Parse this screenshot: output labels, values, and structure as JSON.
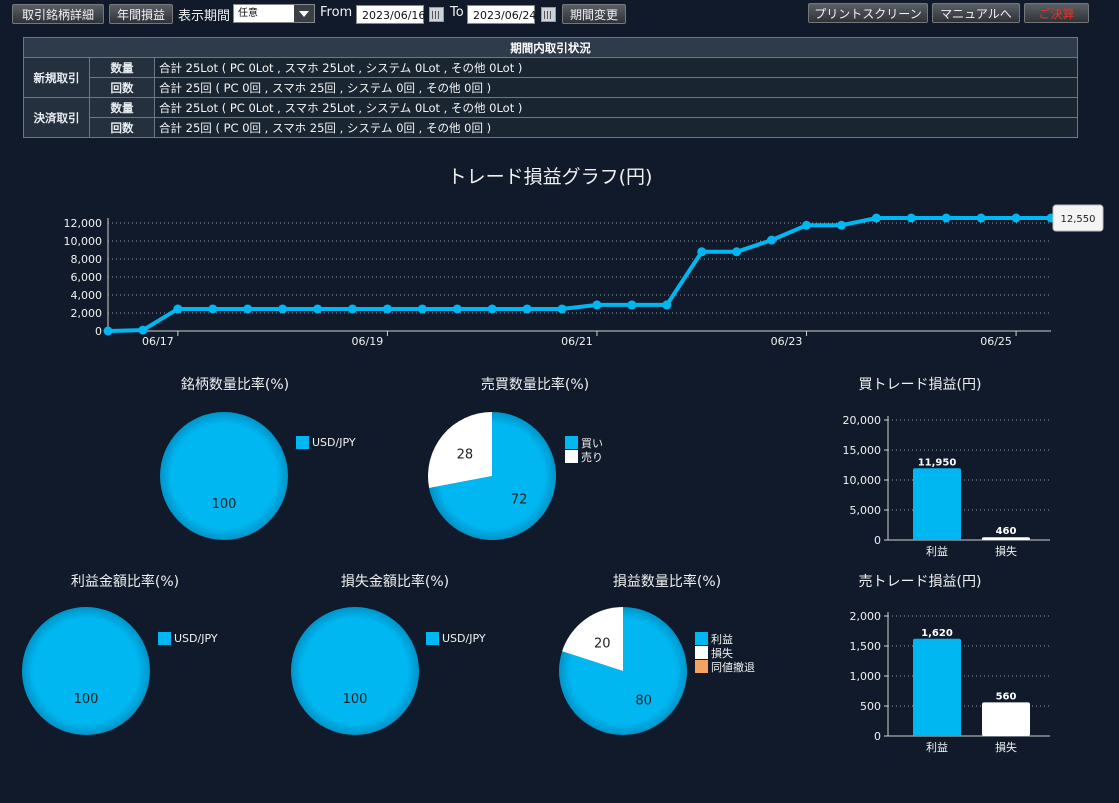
{
  "toolbar": {
    "detail_label": "取引銘柄詳細",
    "annual_label": "年間損益",
    "period_label": "表示期間",
    "period_select": "任意",
    "from_label": "From",
    "from_date": "2023/06/16",
    "to_label": "To",
    "to_date": "2023/06/24",
    "change_label": "期間変更",
    "print_label": "プリントスクリーン",
    "manual_label": "マニュアルへ",
    "close_label": "ご決算"
  },
  "summary": {
    "header": "期間内取引状況",
    "rows": [
      {
        "group": "新規取引",
        "sub": "数量",
        "value": "合計 25Lot ( PC 0Lot , スマホ 25Lot , システム 0Lot , その他 0Lot )"
      },
      {
        "group": "",
        "sub": "回数",
        "value": "合計 25回 ( PC 0回 , スマホ 25回 , システム 0回 , その他 0回 )"
      },
      {
        "group": "決済取引",
        "sub": "数量",
        "value": "合計 25Lot ( PC 0Lot , スマホ 25Lot , システム 0Lot , その他 0Lot )"
      },
      {
        "group": "",
        "sub": "回数",
        "value": "合計 25回 ( PC 0回 , スマホ 25回 , システム 0回 , その他 0回 )"
      }
    ]
  },
  "colors": {
    "accent": "#00b7f1",
    "white": "#ffffff",
    "orange": "#f4a460"
  },
  "chart_data": [
    {
      "type": "line",
      "title": "トレード損益グラフ(円)",
      "x_ticks": [
        "06/17",
        "06/19",
        "06/21",
        "06/23",
        "06/25"
      ],
      "y_ticks": [
        "0",
        "2,000",
        "4,000",
        "6,000",
        "8,000",
        "10,000",
        "12,000"
      ],
      "ylim": [
        0,
        12000
      ],
      "values": [
        0,
        100,
        2450,
        2450,
        2450,
        2450,
        2450,
        2450,
        2450,
        2450,
        2450,
        2450,
        2450,
        2450,
        2900,
        2900,
        2900,
        8800,
        8800,
        10100,
        11750,
        11750,
        12550,
        12550,
        12550,
        12550,
        12550,
        12550
      ],
      "last_label": "12,550"
    },
    {
      "type": "pie",
      "title": "銘柄数量比率(%)",
      "labels": [
        "USD/JPY"
      ],
      "values": [
        100
      ]
    },
    {
      "type": "pie",
      "title": "売買数量比率(%)",
      "labels": [
        "買い",
        "売り"
      ],
      "values": [
        72,
        28
      ]
    },
    {
      "type": "bar",
      "title": "買トレード損益(円)",
      "categories": [
        "利益",
        "損失"
      ],
      "values": [
        11950,
        460
      ],
      "value_labels": [
        "11,950",
        "460"
      ],
      "y_ticks": [
        "0",
        "5,000",
        "10,000",
        "15,000",
        "20,000"
      ],
      "ylim": [
        0,
        20000
      ]
    },
    {
      "type": "pie",
      "title": "利益金額比率(%)",
      "labels": [
        "USD/JPY"
      ],
      "values": [
        100
      ]
    },
    {
      "type": "pie",
      "title": "損失金額比率(%)",
      "labels": [
        "USD/JPY"
      ],
      "values": [
        100
      ]
    },
    {
      "type": "pie",
      "title": "損益数量比率(%)",
      "labels": [
        "利益",
        "損失",
        "同値撤退"
      ],
      "values": [
        80,
        20,
        0
      ]
    },
    {
      "type": "bar",
      "title": "売トレード損益(円)",
      "categories": [
        "利益",
        "損失"
      ],
      "values": [
        1620,
        560
      ],
      "value_labels": [
        "1,620",
        "560"
      ],
      "y_ticks": [
        "0",
        "500",
        "1,000",
        "1,500",
        "2,000"
      ],
      "ylim": [
        0,
        2000
      ]
    }
  ]
}
